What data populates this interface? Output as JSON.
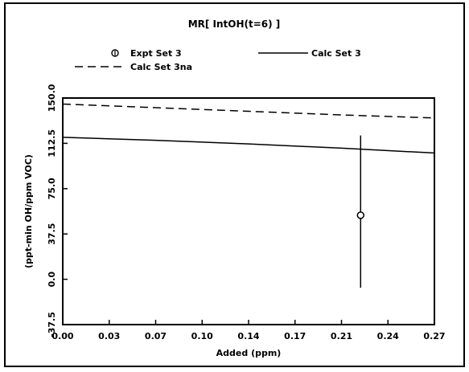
{
  "chart_data": {
    "type": "line",
    "title": "MR[ IntOH(t=6) ]",
    "xlabel": "Added (ppm)",
    "ylabel": "(ppt-min OH/ppm VOC)",
    "xlim": [
      0.0,
      0.272
    ],
    "ylim": [
      -37.5,
      150.0
    ],
    "x_ticks": [
      "0.00",
      "0.03",
      "0.07",
      "0.10",
      "0.14",
      "0.17",
      "0.21",
      "0.24",
      "0.27"
    ],
    "y_ticks": [
      "-37.5",
      "0.0",
      "37.5",
      "75.0",
      "112.5",
      "150.0"
    ],
    "legend_placement": "top",
    "series": [
      {
        "name": "Expt Set 3",
        "style": "circle-marker-with-error-bar",
        "x": [
          0.218
        ],
        "y": [
          53.0
        ],
        "error_low": [
          -7.0
        ],
        "error_high": [
          119.0
        ]
      },
      {
        "name": "Calc Set 3",
        "style": "solid",
        "x": [
          0.0,
          0.068,
          0.136,
          0.204,
          0.272
        ],
        "y": [
          117.5,
          115.0,
          112.0,
          108.5,
          104.5
        ]
      },
      {
        "name": "Calc Set 3na",
        "style": "dashed",
        "x": [
          0.0,
          0.068,
          0.136,
          0.204,
          0.272
        ],
        "y": [
          145.0,
          142.0,
          139.0,
          136.0,
          133.5
        ]
      }
    ],
    "colors": {
      "lines": "#000000",
      "background": "#ffffff"
    }
  }
}
